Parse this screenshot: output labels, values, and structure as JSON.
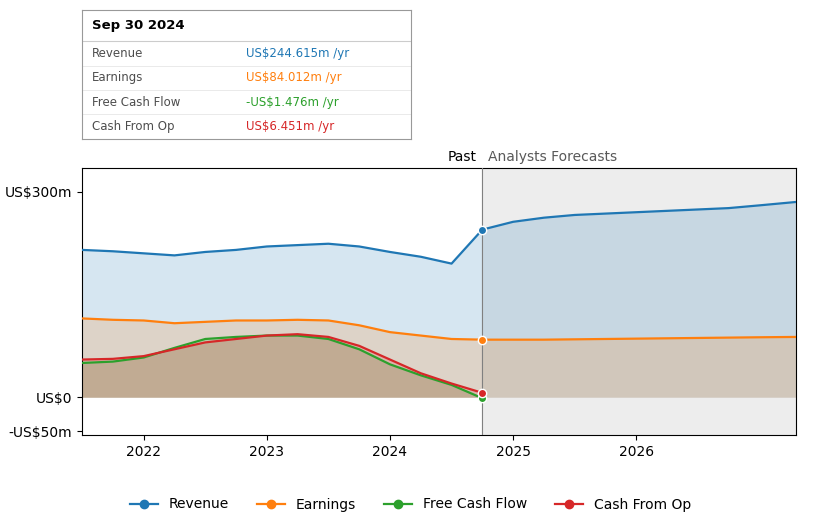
{
  "chart_data": {
    "type": "area",
    "x": [
      2021.5,
      2021.75,
      2022.0,
      2022.25,
      2022.5,
      2022.75,
      2023.0,
      2023.25,
      2023.5,
      2023.75,
      2024.0,
      2024.25,
      2024.5,
      2024.75,
      2025.0,
      2025.25,
      2025.5,
      2025.75,
      2026.0,
      2026.25,
      2026.5,
      2026.75,
      2027.0,
      2027.3
    ],
    "series": [
      {
        "name": "Revenue",
        "values": [
          215,
          213,
          210,
          207,
          212,
          215,
          220,
          222,
          224,
          220,
          212,
          205,
          195,
          244.615,
          256,
          262,
          266,
          268,
          270,
          272,
          274,
          276,
          280,
          285
        ]
      },
      {
        "name": "Earnings",
        "values": [
          115,
          113,
          112,
          108,
          110,
          112,
          112,
          113,
          112,
          105,
          95,
          90,
          85,
          84.012,
          84,
          84,
          84.5,
          85,
          85.5,
          86,
          86.5,
          87,
          87.5,
          88
        ]
      },
      {
        "name": "Free Cash Flow",
        "values": [
          50,
          52,
          58,
          72,
          85,
          88,
          90,
          90,
          85,
          70,
          48,
          32,
          18,
          -1.476,
          null,
          null,
          null,
          null,
          null,
          null,
          null,
          null,
          null,
          null
        ]
      },
      {
        "name": "Cash From Op",
        "values": [
          55,
          56,
          60,
          70,
          80,
          85,
          90,
          92,
          88,
          75,
          55,
          35,
          20,
          6.451,
          null,
          null,
          null,
          null,
          null,
          null,
          null,
          null,
          null,
          null
        ]
      }
    ],
    "xlim": [
      2021.5,
      2027.3
    ],
    "xticks": [
      2022,
      2023,
      2024,
      2025,
      2026
    ],
    "ylim": [
      -55,
      335
    ],
    "yticks": [
      {
        "value": -50,
        "label": "-US$50m"
      },
      {
        "value": 0,
        "label": "US$0"
      },
      {
        "value": 300,
        "label": "US$300m"
      }
    ],
    "grid": false,
    "legend": "lower center",
    "stacked": false,
    "annotations": [
      {
        "text": "Past",
        "x": 2024.75
      },
      {
        "text": "Analysts Forecasts",
        "x": 2024.75
      },
      {
        "text": "Sep 30 2024",
        "x": 2024.75,
        "rows": [
          {
            "name": "Revenue",
            "text": "US$244.615m /yr"
          },
          {
            "name": "Earnings",
            "text": "US$84.012m /yr"
          },
          {
            "name": "Free Cash Flow",
            "text": "-US$1.476m /yr"
          },
          {
            "name": "Cash From Op",
            "text": "US$6.451m /yr"
          }
        ]
      }
    ]
  }
}
